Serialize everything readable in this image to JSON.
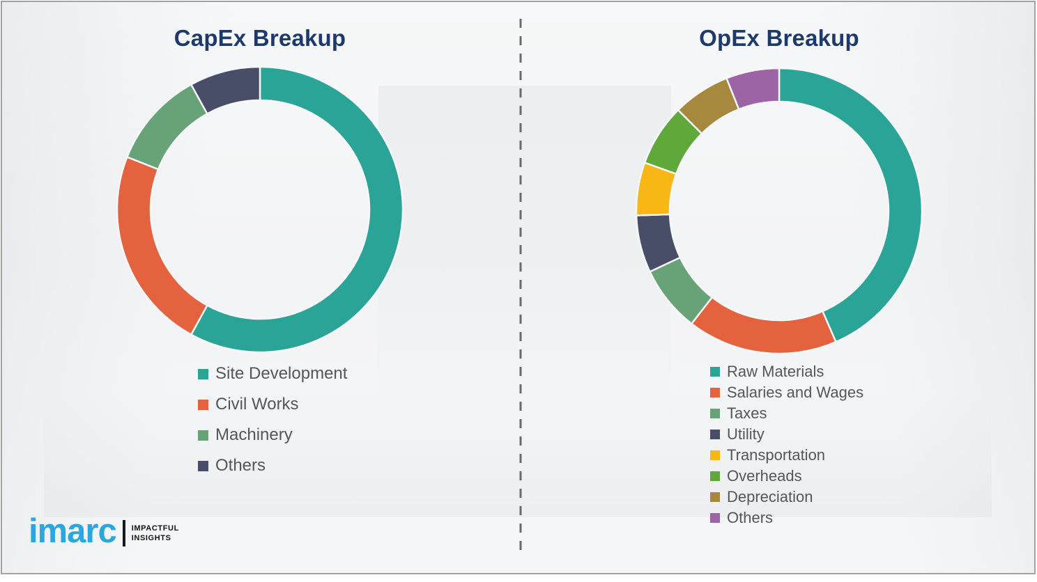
{
  "chart_data": [
    {
      "type": "pie",
      "subtype": "donut",
      "title": "CapEx Breakup",
      "labels": [
        "Site Development",
        "Civil Works",
        "Machinery",
        "Others"
      ],
      "values": [
        58,
        23,
        11,
        8
      ],
      "unit": "percent (estimated from arc angles)",
      "colors": [
        "#2aa496",
        "#e4623e",
        "#68a377",
        "#484e68"
      ],
      "start_angle_deg": 0,
      "direction": "clockwise",
      "legend_position": "below-chart"
    },
    {
      "type": "pie",
      "subtype": "donut",
      "title": "OpEx Breakup",
      "labels": [
        "Raw Materials",
        "Salaries and Wages",
        "Taxes",
        "Utility",
        "Transportation",
        "Overheads",
        "Depreciation",
        "Others"
      ],
      "values": [
        43.5,
        17,
        7.5,
        6.5,
        6,
        7,
        6.5,
        6
      ],
      "unit": "percent (estimated from arc angles)",
      "colors": [
        "#2aa496",
        "#e4623e",
        "#68a377",
        "#484e68",
        "#f8b715",
        "#5ea93a",
        "#a6893f",
        "#9c63a5"
      ],
      "start_angle_deg": 0,
      "direction": "clockwise",
      "legend_position": "below-chart"
    }
  ],
  "titles": {
    "left": "CapEx Breakup",
    "right": "OpEx Breakup",
    "color": "#1e3a6d"
  },
  "logo": {
    "brand": "imarc",
    "tagline_line1": "IMPACTFUL",
    "tagline_line2": "INSIGHTS",
    "brand_color": "#2ba7e0"
  },
  "decor": {
    "divider_style": "vertical dashed line",
    "divider_color": "#6a6a6a",
    "slide_border_color": "#a2a2a2"
  }
}
